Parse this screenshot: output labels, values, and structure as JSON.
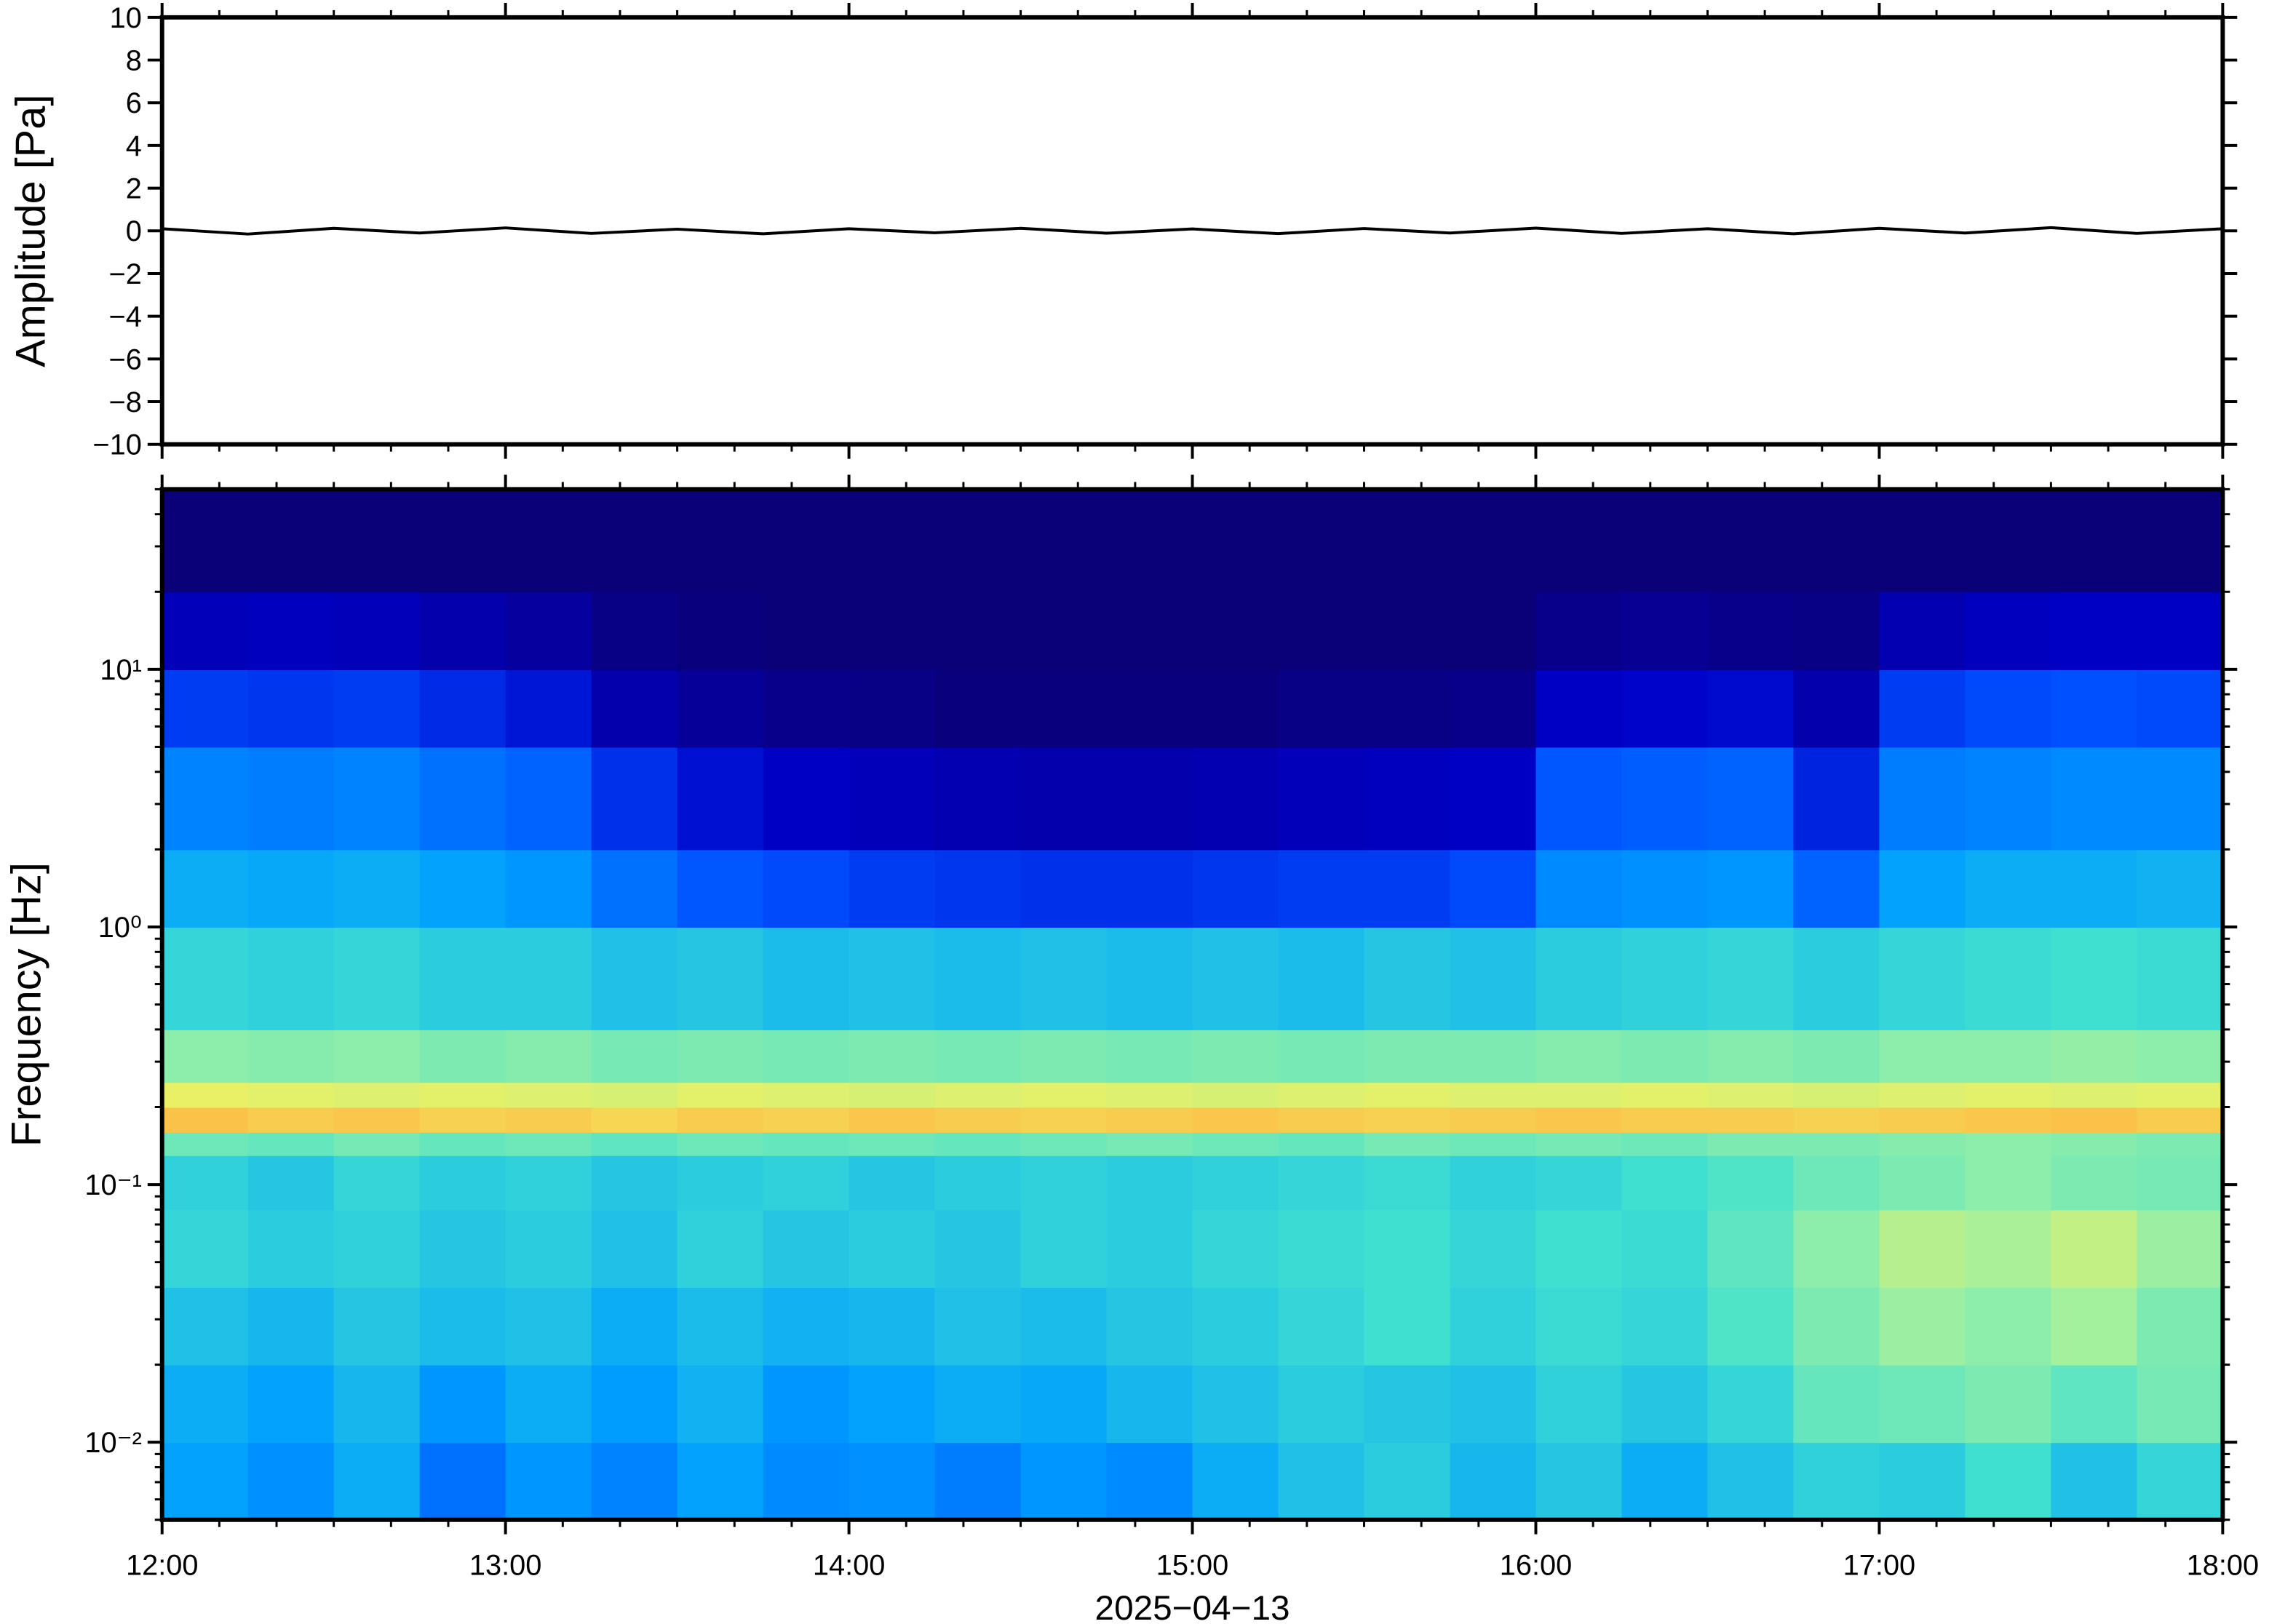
{
  "chart_data": [
    {
      "type": "line",
      "ylabel": "Amplitude [Pa]",
      "xlim": [
        12,
        18
      ],
      "xticks": [
        12,
        13,
        14,
        15,
        16,
        17,
        18
      ],
      "ylim": [
        -10,
        10
      ],
      "yticks": [
        {
          "value": -10,
          "label": "−10"
        },
        {
          "value": -8,
          "label": "−8"
        },
        {
          "value": -6,
          "label": "−6"
        },
        {
          "value": -4,
          "label": "−4"
        },
        {
          "value": -2,
          "label": "−2"
        },
        0,
        2,
        4,
        6,
        8,
        10
      ],
      "x": [
        12,
        12.25,
        12.5,
        12.75,
        13,
        13.25,
        13.5,
        13.75,
        14,
        14.25,
        14.5,
        14.75,
        15,
        15.25,
        15.5,
        15.75,
        16,
        16.25,
        16.5,
        16.75,
        17,
        17.25,
        17.5,
        17.75,
        18
      ],
      "values": [
        0.1,
        -0.15,
        0.12,
        -0.1,
        0.14,
        -0.12,
        0.08,
        -0.14,
        0.1,
        -0.09,
        0.12,
        -0.11,
        0.09,
        -0.13,
        0.11,
        -0.1,
        0.13,
        -0.12,
        0.1,
        -0.14,
        0.12,
        -0.1,
        0.15,
        -0.12,
        0.1
      ],
      "color": "#000000"
    },
    {
      "type": "heatmap",
      "ylabel": "Frequency [Hz]",
      "xlabel": "2025−04−13",
      "xlim": [
        12,
        18
      ],
      "xticks": [
        {
          "value": 12,
          "label": "12:00"
        },
        {
          "value": 13,
          "label": "13:00"
        },
        {
          "value": 14,
          "label": "14:00"
        },
        {
          "value": 15,
          "label": "15:00"
        },
        {
          "value": 16,
          "label": "16:00"
        },
        {
          "value": 17,
          "label": "17:00"
        },
        {
          "value": 18,
          "label": "18:00"
        }
      ],
      "ylim": [
        0.005,
        50
      ],
      "yscale": "log",
      "yticks": [
        {
          "value": 0.01,
          "label": "10⁻²"
        },
        {
          "value": 0.1,
          "label": "10⁻¹"
        },
        {
          "value": 1,
          "label": "10⁰"
        },
        {
          "value": 10,
          "label": "10¹"
        }
      ],
      "xbins": [
        12,
        12.25,
        12.5,
        12.75,
        13,
        13.25,
        13.5,
        13.75,
        14,
        14.25,
        14.5,
        14.75,
        15,
        15.25,
        15.5,
        15.75,
        16,
        16.25,
        16.5,
        16.75,
        17,
        17.25,
        17.5,
        17.75,
        18
      ],
      "ybins": [
        0.005,
        0.01,
        0.02,
        0.04,
        0.08,
        0.13,
        0.16,
        0.2,
        0.25,
        0.4,
        1,
        2,
        5,
        10,
        20,
        50
      ],
      "zlim": [
        0,
        100
      ],
      "colormap": [
        "#0a0078",
        "#0000c8",
        "#0050ff",
        "#00a0ff",
        "#40e0d0",
        "#a0f0a0",
        "#f0f060",
        "#ffb040",
        "#ff7030"
      ],
      "z": [
        [
          38,
          35,
          40,
          30,
          36,
          33,
          38,
          34,
          35,
          32,
          36,
          34,
          40,
          44,
          46,
          42,
          45,
          40,
          44,
          47,
          46,
          50,
          44,
          48
        ],
        [
          40,
          38,
          42,
          36,
          40,
          37,
          41,
          36,
          38,
          40,
          39,
          42,
          44,
          46,
          45,
          44,
          47,
          45,
          48,
          55,
          56,
          58,
          54,
          57
        ],
        [
          44,
          42,
          45,
          43,
          44,
          40,
          43,
          41,
          42,
          44,
          43,
          45,
          46,
          48,
          50,
          47,
          49,
          48,
          52,
          58,
          62,
          60,
          63,
          58
        ],
        [
          48,
          46,
          47,
          45,
          46,
          44,
          47,
          45,
          46,
          45,
          47,
          46,
          48,
          49,
          50,
          48,
          50,
          49,
          54,
          60,
          66,
          64,
          68,
          62
        ],
        [
          47,
          45,
          48,
          46,
          47,
          45,
          46,
          47,
          45,
          46,
          47,
          46,
          47,
          48,
          49,
          47,
          48,
          50,
          52,
          56,
          58,
          60,
          58,
          57
        ],
        [
          56,
          55,
          57,
          55,
          56,
          54,
          56,
          55,
          56,
          55,
          56,
          57,
          56,
          55,
          57,
          56,
          57,
          56,
          58,
          58,
          59,
          60,
          59,
          58
        ],
        [
          84,
          82,
          83,
          81,
          82,
          80,
          82,
          81,
          83,
          82,
          81,
          82,
          83,
          82,
          81,
          82,
          83,
          82,
          82,
          81,
          82,
          83,
          84,
          82
        ],
        [
          74,
          73,
          72,
          73,
          72,
          71,
          73,
          72,
          71,
          72,
          73,
          72,
          71,
          72,
          73,
          72,
          72,
          73,
          72,
          71,
          72,
          73,
          72,
          73
        ],
        [
          60,
          59,
          60,
          58,
          59,
          57,
          58,
          57,
          58,
          57,
          58,
          57,
          58,
          57,
          58,
          58,
          59,
          58,
          59,
          58,
          60,
          60,
          61,
          60
        ],
        [
          48,
          47,
          48,
          46,
          46,
          44,
          45,
          43,
          44,
          43,
          44,
          43,
          44,
          43,
          45,
          44,
          46,
          47,
          48,
          46,
          48,
          49,
          50,
          49
        ],
        [
          40,
          39,
          40,
          38,
          36,
          30,
          26,
          24,
          22,
          21,
          20,
          20,
          21,
          22,
          22,
          24,
          34,
          35,
          36,
          28,
          38,
          40,
          40,
          41
        ],
        [
          33,
          32,
          33,
          30,
          28,
          20,
          15,
          12,
          10,
          9,
          8,
          8,
          9,
          10,
          11,
          12,
          26,
          27,
          28,
          18,
          32,
          33,
          34,
          34
        ],
        [
          22,
          21,
          22,
          19,
          16,
          8,
          5,
          3,
          2,
          1,
          1,
          1,
          1,
          2,
          2,
          3,
          12,
          13,
          14,
          8,
          22,
          24,
          25,
          24
        ],
        [
          10,
          11,
          10,
          8,
          6,
          2,
          1,
          0,
          0,
          0,
          0,
          0,
          0,
          0,
          0,
          0,
          3,
          4,
          3,
          2,
          9,
          11,
          12,
          12
        ],
        [
          0,
          0,
          0,
          0,
          0,
          0,
          0,
          0,
          0,
          0,
          0,
          0,
          0,
          0,
          0,
          0,
          0,
          0,
          0,
          0,
          0,
          0,
          0,
          0
        ]
      ]
    }
  ]
}
